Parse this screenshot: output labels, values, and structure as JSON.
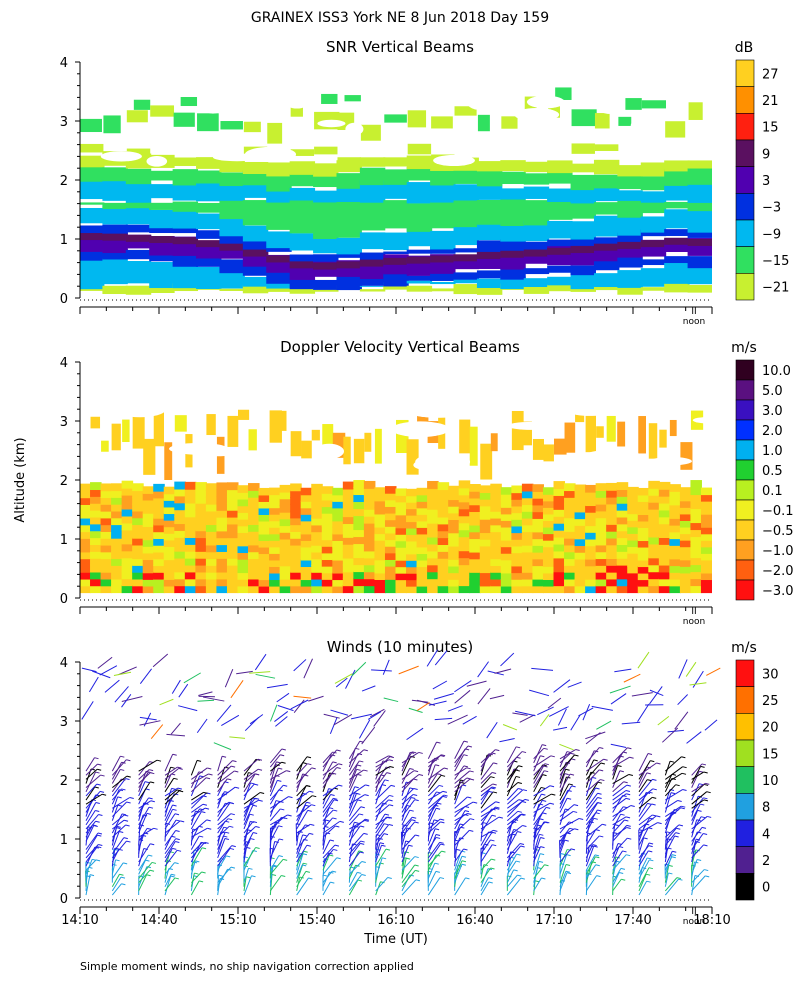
{
  "header": {
    "title": "GRAINEX ISS3 York NE   8 Jun 2018 Day 159"
  },
  "footer": {
    "note": "Simple moment winds, no ship navigation correction applied"
  },
  "shared": {
    "ylabel": "Altitude (km)",
    "xlabel": "Time (UT)",
    "x_tick_labels": [
      "14:10",
      "14:40",
      "15:10",
      "15:40",
      "16:10",
      "16:40",
      "17:10",
      "17:40",
      "18:10"
    ],
    "y_tick_labels": [
      "0",
      "1",
      "2",
      "3",
      "4"
    ],
    "noon_marker": "noon",
    "noon_symbol": "II"
  },
  "chart_data": [
    {
      "id": "snr",
      "type": "heatmap",
      "title": "SNR Vertical Beams",
      "colorbar_unit": "dB",
      "colorbar_labels": [
        "27",
        "21",
        "15",
        "9",
        "3",
        "−3",
        "−9",
        "−15",
        "−21"
      ],
      "colorbar_colors": [
        "#ffd020",
        "#ff9000",
        "#ff2010",
        "#5a1060",
        "#5000b0",
        "#0030e0",
        "#00b8f0",
        "#30e060",
        "#c8f030"
      ],
      "xlim_hours": [
        14.1667,
        18.1667
      ],
      "ylim_km": [
        0,
        4
      ],
      "bands": [
        {
          "name": "core",
          "color": "#4a0a70",
          "values_db": [
            6,
            6,
            6,
            6,
            6,
            6,
            6,
            6,
            6,
            6,
            6,
            6,
            6,
            6,
            6,
            6,
            6,
            6,
            6,
            6,
            6,
            6,
            6,
            6,
            6,
            6,
            6
          ]
        },
        {
          "name": "high",
          "color": "#0030e0",
          "values_db": [
            0,
            0,
            0,
            0,
            0,
            0,
            0,
            0,
            0,
            0,
            0,
            0,
            0,
            0,
            0,
            0,
            0,
            0,
            0,
            0,
            0,
            0,
            0,
            0,
            0,
            0,
            0
          ]
        }
      ],
      "core_layer_km": [
        1.0,
        0.99,
        0.97,
        0.95,
        0.93,
        0.88,
        0.82,
        0.72,
        0.62,
        0.52,
        0.5,
        0.52,
        0.55,
        0.58,
        0.6,
        0.62,
        0.64,
        0.68,
        0.7,
        0.72,
        0.75,
        0.78,
        0.82,
        0.85,
        0.88,
        0.92,
        0.9
      ],
      "cloud_top_km": [
        2.0,
        2.0,
        1.95,
        1.95,
        1.95,
        1.9,
        1.9,
        1.9,
        1.85,
        1.85,
        1.85,
        1.9,
        1.95,
        1.95,
        1.95,
        1.95,
        1.95,
        1.9,
        1.9,
        1.9,
        1.9,
        1.85,
        1.85,
        1.85,
        1.85,
        1.9,
        1.9
      ]
    },
    {
      "id": "doppler",
      "type": "heatmap",
      "title": "Doppler Velocity Vertical Beams",
      "colorbar_unit": "m/s",
      "colorbar_labels": [
        "10.0",
        "5.0",
        "3.0",
        "2.0",
        "1.0",
        "0.5",
        "0.1",
        "−0.1",
        "−0.5",
        "−1.0",
        "−2.0",
        "−3.0"
      ],
      "colorbar_colors": [
        "#300020",
        "#5a1080",
        "#3a10c0",
        "#0030ff",
        "#00b0f0",
        "#20d030",
        "#b8f020",
        "#f0f020",
        "#ffd020",
        "#ffa020",
        "#ff6010",
        "#ff1010"
      ],
      "xlim_hours": [
        14.1667,
        18.1667
      ],
      "ylim_km": [
        0,
        4
      ],
      "dominant_value_ms": -0.5
    },
    {
      "id": "winds",
      "type": "scatter",
      "title": "Winds (10 minutes)",
      "colorbar_unit": "m/s",
      "colorbar_labels": [
        "30",
        "25",
        "20",
        "15",
        "10",
        "8",
        "4",
        "2",
        "0"
      ],
      "colorbar_colors": [
        "#ff1010",
        "#ff7000",
        "#ffc000",
        "#a0e020",
        "#20c060",
        "#20a0e0",
        "#2020e0",
        "#502090",
        "#000000"
      ],
      "xlim_hours": [
        14.1667,
        18.1667
      ],
      "ylim_km": [
        0,
        4
      ],
      "profile_times": [
        "14:10",
        "14:20",
        "14:30",
        "14:40",
        "14:50",
        "15:00",
        "15:10",
        "15:20",
        "15:30",
        "15:40",
        "15:50",
        "16:00",
        "16:10",
        "16:20",
        "16:30",
        "16:40",
        "16:50",
        "17:00",
        "17:10",
        "17:20",
        "17:30",
        "17:40",
        "17:50",
        "18:00",
        "18:10"
      ],
      "profile_top_km": [
        2.2,
        2.2,
        2.2,
        2.2,
        2.1,
        2.2,
        2.2,
        2.3,
        2.2,
        2.3,
        2.4,
        2.3,
        2.3,
        2.4,
        2.4,
        2.3,
        2.3,
        2.4,
        2.4,
        2.3,
        2.3,
        2.2,
        2.2,
        2.1,
        2.2
      ]
    }
  ]
}
